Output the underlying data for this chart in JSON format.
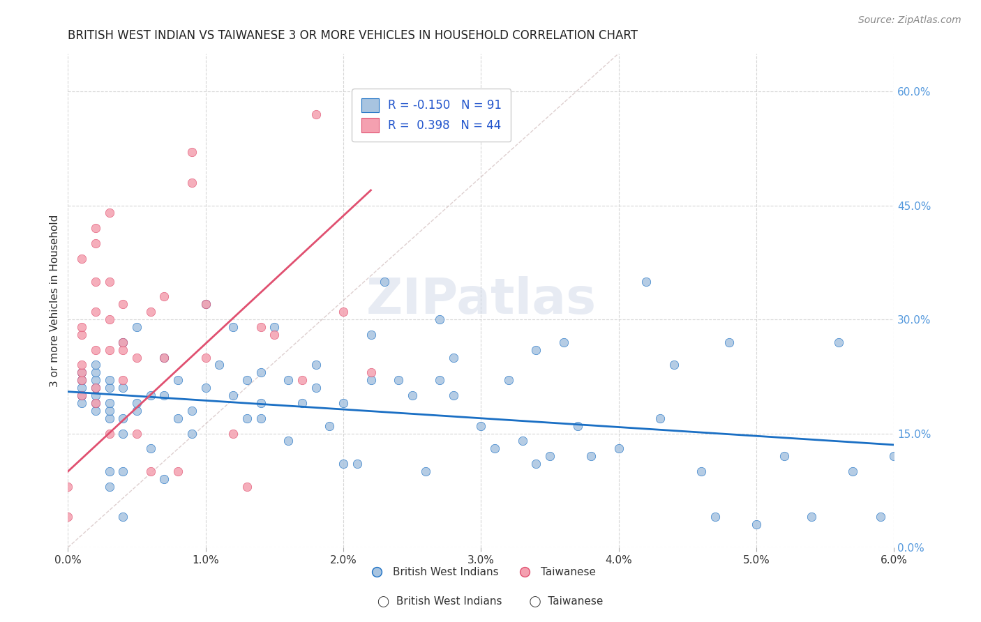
{
  "title": "BRITISH WEST INDIAN VS TAIWANESE 3 OR MORE VEHICLES IN HOUSEHOLD CORRELATION CHART",
  "source": "Source: ZipAtlas.com",
  "xlabel_bottom": "",
  "ylabel": "3 or more Vehicles in Household",
  "xlim": [
    0.0,
    0.06
  ],
  "ylim": [
    0.0,
    0.65
  ],
  "x_ticks": [
    0.0,
    0.01,
    0.02,
    0.03,
    0.04,
    0.05,
    0.06
  ],
  "x_tick_labels": [
    "0.0%",
    "1.0%",
    "2.0%",
    "3.0%",
    "4.0%",
    "5.0%",
    "6.0%"
  ],
  "y_ticks_right": [
    0.0,
    0.15,
    0.3,
    0.45,
    0.6
  ],
  "y_tick_labels_right": [
    "0.0%",
    "15.0%",
    "30.0%",
    "45.0%",
    "60.0%"
  ],
  "watermark": "ZIPatlas",
  "legend_label1": "British West Indians",
  "legend_label2": "Taiwanese",
  "legend_R1": "-0.150",
  "legend_N1": "91",
  "legend_R2": "0.398",
  "legend_N2": "44",
  "color_blue": "#a8c4e0",
  "color_pink": "#f4a0b0",
  "line_color_blue": "#1a6fc4",
  "line_color_pink": "#e05070",
  "line_color_diag": "#c8b0b0",
  "background_color": "#ffffff",
  "blue_scatter_x": [
    0.001,
    0.001,
    0.001,
    0.001,
    0.001,
    0.002,
    0.002,
    0.002,
    0.002,
    0.002,
    0.002,
    0.002,
    0.003,
    0.003,
    0.003,
    0.003,
    0.003,
    0.003,
    0.003,
    0.004,
    0.004,
    0.004,
    0.004,
    0.004,
    0.004,
    0.005,
    0.005,
    0.005,
    0.006,
    0.006,
    0.007,
    0.007,
    0.007,
    0.008,
    0.008,
    0.009,
    0.009,
    0.01,
    0.01,
    0.011,
    0.012,
    0.012,
    0.013,
    0.013,
    0.014,
    0.014,
    0.014,
    0.015,
    0.016,
    0.016,
    0.017,
    0.018,
    0.018,
    0.019,
    0.02,
    0.02,
    0.021,
    0.022,
    0.022,
    0.023,
    0.024,
    0.025,
    0.026,
    0.027,
    0.027,
    0.028,
    0.028,
    0.03,
    0.031,
    0.032,
    0.033,
    0.034,
    0.034,
    0.035,
    0.036,
    0.037,
    0.038,
    0.04,
    0.042,
    0.043,
    0.044,
    0.046,
    0.047,
    0.048,
    0.05,
    0.052,
    0.054,
    0.056,
    0.057,
    0.059,
    0.06
  ],
  "blue_scatter_y": [
    0.19,
    0.2,
    0.21,
    0.22,
    0.23,
    0.18,
    0.19,
    0.2,
    0.21,
    0.22,
    0.23,
    0.24,
    0.08,
    0.1,
    0.17,
    0.18,
    0.19,
    0.21,
    0.22,
    0.04,
    0.1,
    0.15,
    0.17,
    0.21,
    0.27,
    0.18,
    0.19,
    0.29,
    0.13,
    0.2,
    0.09,
    0.2,
    0.25,
    0.17,
    0.22,
    0.15,
    0.18,
    0.21,
    0.32,
    0.24,
    0.2,
    0.29,
    0.17,
    0.22,
    0.17,
    0.19,
    0.23,
    0.29,
    0.14,
    0.22,
    0.19,
    0.21,
    0.24,
    0.16,
    0.11,
    0.19,
    0.11,
    0.22,
    0.28,
    0.35,
    0.22,
    0.2,
    0.1,
    0.22,
    0.3,
    0.2,
    0.25,
    0.16,
    0.13,
    0.22,
    0.14,
    0.11,
    0.26,
    0.12,
    0.27,
    0.16,
    0.12,
    0.13,
    0.35,
    0.17,
    0.24,
    0.1,
    0.04,
    0.27,
    0.03,
    0.12,
    0.04,
    0.27,
    0.1,
    0.04,
    0.12
  ],
  "pink_scatter_x": [
    0.0,
    0.0,
    0.001,
    0.001,
    0.001,
    0.001,
    0.001,
    0.001,
    0.001,
    0.002,
    0.002,
    0.002,
    0.002,
    0.002,
    0.002,
    0.002,
    0.003,
    0.003,
    0.003,
    0.003,
    0.003,
    0.004,
    0.004,
    0.004,
    0.004,
    0.005,
    0.005,
    0.006,
    0.006,
    0.007,
    0.007,
    0.008,
    0.009,
    0.009,
    0.01,
    0.01,
    0.012,
    0.013,
    0.014,
    0.015,
    0.017,
    0.018,
    0.02,
    0.022
  ],
  "pink_scatter_y": [
    0.04,
    0.08,
    0.2,
    0.22,
    0.23,
    0.24,
    0.28,
    0.29,
    0.38,
    0.19,
    0.21,
    0.26,
    0.31,
    0.35,
    0.4,
    0.42,
    0.15,
    0.26,
    0.3,
    0.35,
    0.44,
    0.22,
    0.26,
    0.27,
    0.32,
    0.15,
    0.25,
    0.1,
    0.31,
    0.25,
    0.33,
    0.1,
    0.48,
    0.52,
    0.25,
    0.32,
    0.15,
    0.08,
    0.29,
    0.28,
    0.22,
    0.57,
    0.31,
    0.23
  ],
  "blue_line_x": [
    0.0,
    0.06
  ],
  "blue_line_y": [
    0.205,
    0.135
  ],
  "pink_line_x": [
    0.0,
    0.022
  ],
  "pink_line_y": [
    0.1,
    0.47
  ],
  "diag_line_x": [
    0.0,
    0.04
  ],
  "diag_line_y": [
    0.0,
    0.65
  ]
}
